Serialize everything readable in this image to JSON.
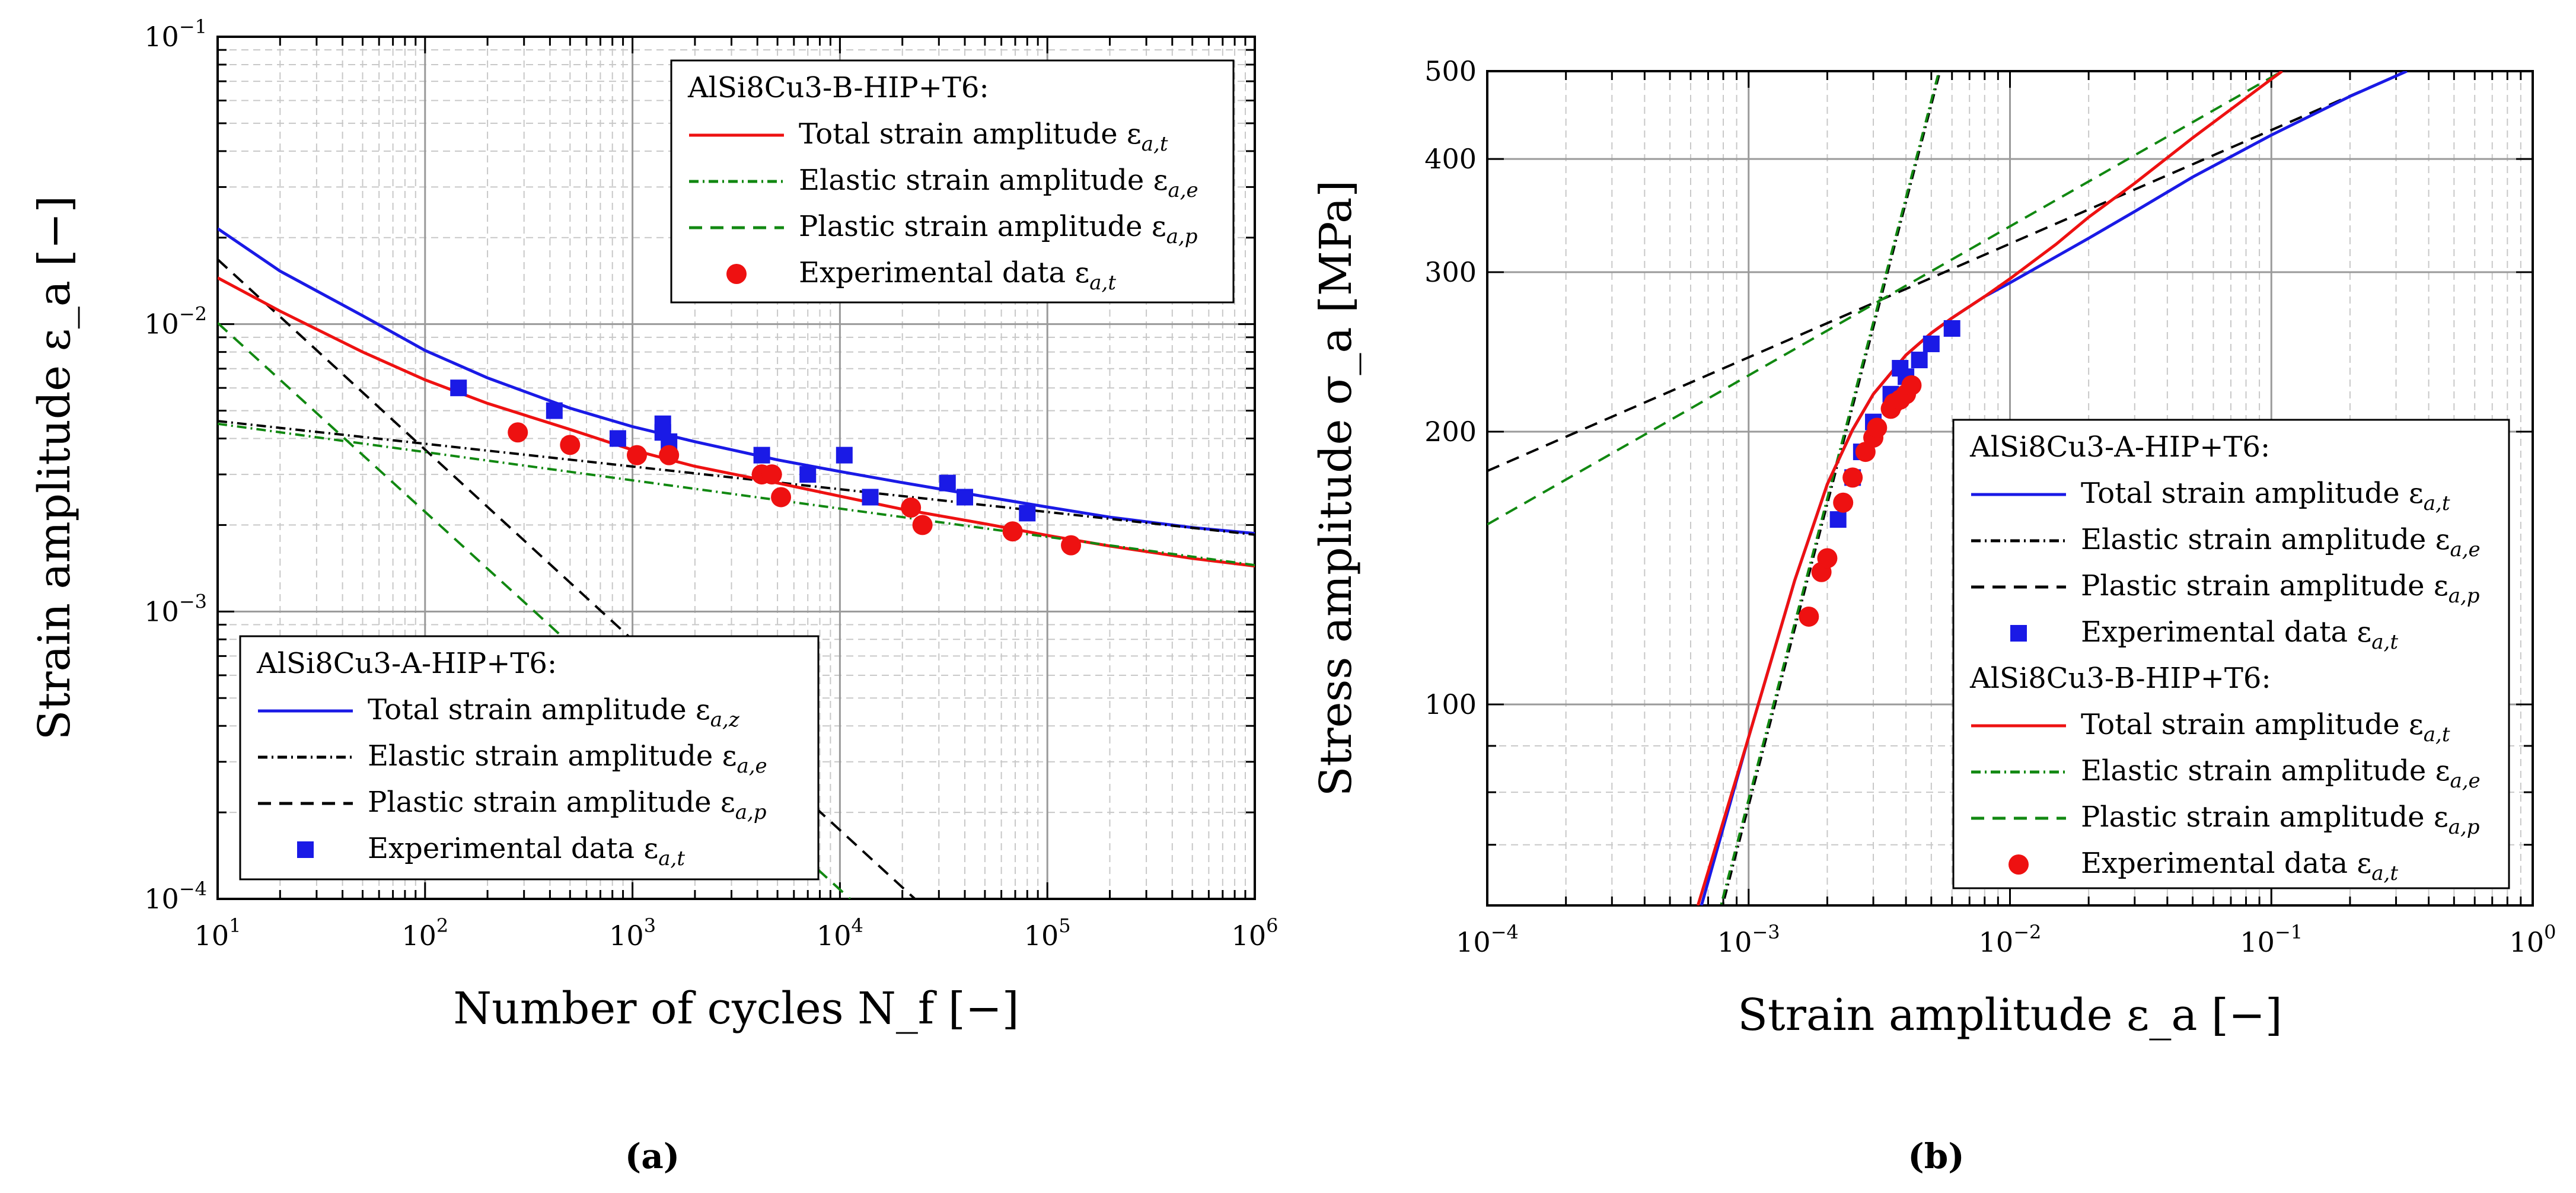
{
  "figure": {
    "panel_labels": [
      "(a)",
      "(b)"
    ]
  },
  "chart_data": [
    {
      "type": "line",
      "panel": "(a)",
      "xlabel": "Number of cycles N_f [−]",
      "ylabel": "Strain amplitude ε_a [−]",
      "xscale": "log",
      "yscale": "log",
      "xlim": [
        10,
        1000000
      ],
      "ylim": [
        0.0001,
        0.1
      ],
      "x_ticks": [
        {
          "value": 10,
          "label": "10",
          "exp": "1"
        },
        {
          "value": 100,
          "label": "10",
          "exp": "2"
        },
        {
          "value": 1000,
          "label": "10",
          "exp": "3"
        },
        {
          "value": 10000,
          "label": "10",
          "exp": "4"
        },
        {
          "value": 100000,
          "label": "10",
          "exp": "5"
        },
        {
          "value": 1000000,
          "label": "10",
          "exp": "6"
        }
      ],
      "y_ticks": [
        {
          "value": 0.0001,
          "label": "10",
          "exp": "-4"
        },
        {
          "value": 0.001,
          "label": "10",
          "exp": "-3"
        },
        {
          "value": 0.01,
          "label": "10",
          "exp": "-2"
        },
        {
          "value": 0.1,
          "label": "10",
          "exp": "-1"
        }
      ],
      "grid": true,
      "legends": [
        {
          "placement": "top-right",
          "title": "AlSi8Cu3-B-HIP+T6:",
          "entries": [
            {
              "label": "Total strain amplitude ε",
              "sub": "a,t",
              "color": "#ee1111",
              "dash": "solid",
              "marker": "none"
            },
            {
              "label": "Elastic strain amplitude ε",
              "sub": "a,e",
              "color": "#118811",
              "dash": "dashdot",
              "marker": "none"
            },
            {
              "label": "Plastic strain amplitude ε",
              "sub": "a,p",
              "color": "#118811",
              "dash": "dashed",
              "marker": "none"
            },
            {
              "label": "Experimental data ε",
              "sub": "a,t",
              "color": "#ee1111",
              "dash": "none",
              "marker": "circle"
            }
          ]
        },
        {
          "placement": "bottom-left",
          "title": "AlSi8Cu3-A-HIP+T6:",
          "entries": [
            {
              "label": "Total strain amplitude ε",
              "sub": "a,z",
              "color": "#1a1ae6",
              "dash": "solid",
              "marker": "none"
            },
            {
              "label": "Elastic strain amplitude ε",
              "sub": "a,e",
              "color": "#000000",
              "dash": "dashdot",
              "marker": "none"
            },
            {
              "label": "Plastic strain amplitude ε",
              "sub": "a,p",
              "color": "#000000",
              "dash": "dashed",
              "marker": "none"
            },
            {
              "label": "Experimental data ε",
              "sub": "a,t",
              "color": "#1a1ae6",
              "dash": "none",
              "marker": "square"
            }
          ]
        }
      ],
      "series": [
        {
          "name": "A total strain amplitude",
          "kind": "curve",
          "color": "#1a1ae6",
          "dash": "solid",
          "x": [
            10,
            20,
            50,
            100,
            200,
            500,
            1000,
            2000,
            5000,
            10000,
            20000,
            50000,
            100000,
            200000,
            500000,
            1000000
          ],
          "y": [
            0.0215,
            0.0153,
            0.0107,
            0.0081,
            0.0065,
            0.0051,
            0.0044,
            0.0039,
            0.00337,
            0.00307,
            0.00281,
            0.00251,
            0.00231,
            0.00213,
            0.00196,
            0.00187
          ]
        },
        {
          "name": "A elastic strain amplitude",
          "kind": "line",
          "color": "#000000",
          "dash": "dashdot",
          "x": [
            10,
            1000000
          ],
          "y": [
            0.0046,
            0.00185
          ]
        },
        {
          "name": "A plastic strain amplitude",
          "kind": "line",
          "color": "#000000",
          "dash": "dashed",
          "x": [
            10,
            23000
          ],
          "y": [
            0.0168,
            0.0001
          ]
        },
        {
          "name": "B total strain amplitude",
          "kind": "curve",
          "color": "#ee1111",
          "dash": "solid",
          "x": [
            10,
            20,
            50,
            100,
            200,
            500,
            1000,
            2000,
            5000,
            10000,
            20000,
            50000,
            100000,
            200000,
            500000,
            1000000
          ],
          "y": [
            0.0145,
            0.0111,
            0.008,
            0.0064,
            0.0053,
            0.0043,
            0.00365,
            0.0032,
            0.0028,
            0.00252,
            0.00227,
            0.00202,
            0.00184,
            0.00169,
            0.00153,
            0.00144
          ]
        },
        {
          "name": "B elastic strain amplitude",
          "kind": "line",
          "color": "#118811",
          "dash": "dashdot",
          "x": [
            10,
            1000000
          ],
          "y": [
            0.0045,
            0.00145
          ]
        },
        {
          "name": "B plastic strain amplitude",
          "kind": "line",
          "color": "#118811",
          "dash": "dashed",
          "x": [
            10,
            11200
          ],
          "y": [
            0.0101,
            0.0001
          ]
        },
        {
          "name": "A experimental data",
          "kind": "scatter",
          "marker": "square",
          "color": "#1a1ae6",
          "x": [
            145,
            420,
            850,
            1400,
            1400,
            1500,
            4200,
            7000,
            10500,
            14000,
            33000,
            40000,
            80000
          ],
          "y": [
            0.006,
            0.005,
            0.004,
            0.0045,
            0.0042,
            0.0039,
            0.0035,
            0.003,
            0.0035,
            0.0025,
            0.0028,
            0.0025,
            0.0022
          ]
        },
        {
          "name": "B experimental data",
          "kind": "scatter",
          "marker": "circle",
          "color": "#ee1111",
          "x": [
            280,
            500,
            1050,
            1500,
            4200,
            4700,
            5200,
            22000,
            25000,
            68000,
            130000
          ],
          "y": [
            0.0042,
            0.0038,
            0.0035,
            0.0035,
            0.003,
            0.003,
            0.0025,
            0.0023,
            0.002,
            0.0019,
            0.0017
          ]
        }
      ]
    },
    {
      "type": "line",
      "panel": "(b)",
      "xlabel": "Strain amplitude ε_a [−]",
      "ylabel": "Stress amplitude σ_a [MPa]",
      "xscale": "log",
      "yscale": "log",
      "xlim": [
        0.0001,
        1
      ],
      "ylim": [
        60,
        500
      ],
      "x_ticks": [
        {
          "value": 0.0001,
          "label": "10",
          "exp": "-4"
        },
        {
          "value": 0.001,
          "label": "10",
          "exp": "-3"
        },
        {
          "value": 0.01,
          "label": "10",
          "exp": "-2"
        },
        {
          "value": 0.1,
          "label": "10",
          "exp": "-1"
        },
        {
          "value": 1,
          "label": "10",
          "exp": "0"
        }
      ],
      "y_ticks": [
        {
          "value": 100,
          "label": "100",
          "exp": ""
        },
        {
          "value": 200,
          "label": "200",
          "exp": ""
        },
        {
          "value": 300,
          "label": "300",
          "exp": ""
        },
        {
          "value": 400,
          "label": "400",
          "exp": ""
        },
        {
          "value": 500,
          "label": "500",
          "exp": ""
        }
      ],
      "grid": true,
      "legends": [
        {
          "placement": "bottom-right",
          "title": "AlSi8Cu3-A-HIP+T6:",
          "title2": "AlSi8Cu3-B-HIP+T6:",
          "entries": [
            {
              "label": "Total strain amplitude ε",
              "sub": "a,t",
              "color": "#1a1ae6",
              "dash": "solid",
              "marker": "none",
              "group": 1
            },
            {
              "label": "Elastic strain amplitude ε",
              "sub": "a,e",
              "color": "#000000",
              "dash": "dashdot",
              "marker": "none",
              "group": 1
            },
            {
              "label": "Plastic strain amplitude ε",
              "sub": "a,p",
              "color": "#000000",
              "dash": "dashed",
              "marker": "none",
              "group": 1
            },
            {
              "label": "Experimental data ε",
              "sub": "a,t",
              "color": "#1a1ae6",
              "dash": "none",
              "marker": "square",
              "group": 1
            },
            {
              "label": "Total strain amplitude ε",
              "sub": "a,t",
              "color": "#ee1111",
              "dash": "solid",
              "marker": "none",
              "group": 2
            },
            {
              "label": "Elastic strain amplitude ε",
              "sub": "a,e",
              "color": "#118811",
              "dash": "dashdot",
              "marker": "none",
              "group": 2
            },
            {
              "label": "Plastic strain amplitude ε",
              "sub": "a,p",
              "color": "#118811",
              "dash": "dashed",
              "marker": "none",
              "group": 2
            },
            {
              "label": "Experimental data ε",
              "sub": "a,t",
              "color": "#ee1111",
              "dash": "none",
              "marker": "circle",
              "group": 2
            }
          ]
        }
      ],
      "series": [
        {
          "name": "A elastic line",
          "kind": "line",
          "color": "#000000",
          "dash": "dashdot",
          "x": [
            0.00065,
            0.0054
          ],
          "y": [
            48,
            500
          ]
        },
        {
          "name": "B elastic line",
          "kind": "line",
          "color": "#118811",
          "dash": "dashdot",
          "x": [
            0.00064,
            0.00535
          ],
          "y": [
            48,
            500
          ]
        },
        {
          "name": "A plastic line",
          "kind": "line",
          "color": "#000000",
          "dash": "dashed",
          "x": [
            0.0001,
            0.33
          ],
          "y": [
            181,
            500
          ]
        },
        {
          "name": "B plastic line",
          "kind": "line",
          "color": "#118811",
          "dash": "dashed",
          "x": [
            0.0001,
            0.11
          ],
          "y": [
            158,
            500
          ]
        },
        {
          "name": "A total strain amplitude",
          "kind": "curve",
          "color": "#1a1ae6",
          "dash": "solid",
          "x": [
            0.00066,
            0.001,
            0.0015,
            0.002,
            0.0025,
            0.003,
            0.004,
            0.005,
            0.006,
            0.008,
            0.01,
            0.015,
            0.02,
            0.03,
            0.05,
            0.1,
            0.2,
            0.33
          ],
          "y": [
            60,
            92,
            137,
            175,
            201,
            220,
            243,
            257,
            267,
            282,
            292,
            312,
            327,
            350,
            382,
            425,
            469,
            500
          ]
        },
        {
          "name": "B total strain amplitude",
          "kind": "curve",
          "color": "#ee1111",
          "dash": "solid",
          "x": [
            0.00064,
            0.001,
            0.0015,
            0.002,
            0.0025,
            0.003,
            0.004,
            0.005,
            0.006,
            0.008,
            0.01,
            0.015,
            0.02,
            0.03,
            0.05,
            0.1,
            0.11
          ],
          "y": [
            60,
            92,
            137,
            175,
            201,
            220,
            243,
            257,
            267,
            282,
            295,
            322,
            345,
            376,
            422,
            490,
            500
          ]
        },
        {
          "name": "A experimental data",
          "kind": "scatter",
          "marker": "square",
          "color": "#1a1ae6",
          "x": [
            0.0022,
            0.0025,
            0.0027,
            0.003,
            0.0035,
            0.0038,
            0.004,
            0.0045,
            0.005,
            0.006
          ],
          "y": [
            160,
            178,
            190,
            205,
            220,
            235,
            230,
            240,
            250,
            260
          ]
        },
        {
          "name": "B experimental data",
          "kind": "scatter",
          "marker": "circle",
          "color": "#ee1111",
          "x": [
            0.0017,
            0.0019,
            0.002,
            0.0023,
            0.0025,
            0.0028,
            0.003,
            0.0031,
            0.0035,
            0.0036,
            0.0038,
            0.004,
            0.0042
          ],
          "y": [
            125,
            140,
            145,
            167,
            178,
            190,
            197,
            202,
            212,
            215,
            217,
            220,
            225
          ]
        }
      ]
    }
  ]
}
